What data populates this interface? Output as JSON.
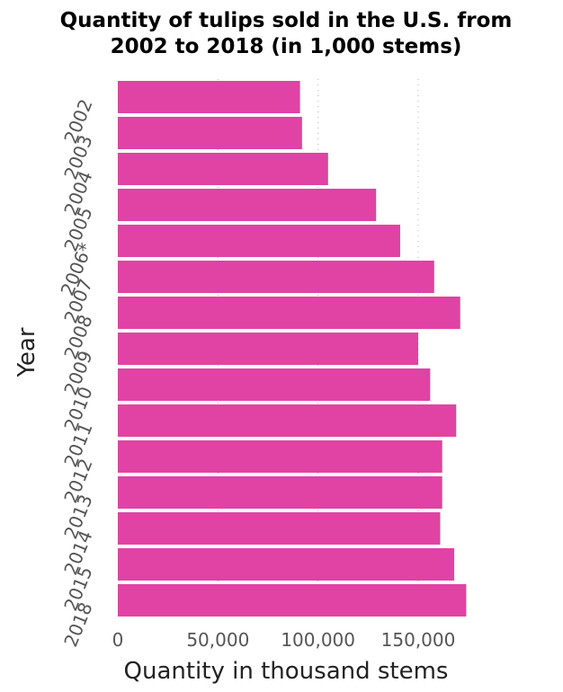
{
  "chart_data": {
    "type": "bar",
    "orientation": "horizontal",
    "title": "Quantity of tulips sold in the U.S. from 2002 to 2018 (in 1,000 stems)",
    "title_lines": [
      "Quantity of tulips sold in the U.S. from",
      "2002 to 2018 (in 1,000 stems)"
    ],
    "xlabel": "Quantity in thousand stems",
    "ylabel": "Year",
    "categories": [
      "2002",
      "2003",
      "2004",
      "2005",
      "2006*",
      "2007",
      "2008",
      "2009",
      "2010",
      "2011",
      "2012",
      "2013",
      "2014",
      "2015",
      "2018"
    ],
    "values": [
      91000,
      92000,
      105000,
      129000,
      141000,
      158000,
      171000,
      150000,
      156000,
      169000,
      162000,
      162000,
      161000,
      168000,
      174000
    ],
    "xlim": [
      0,
      175000
    ],
    "xticks": [
      0,
      50000,
      100000,
      150000
    ],
    "xtick_labels": [
      "0",
      "50,000",
      "100,000",
      "150,000"
    ],
    "grid": "vertical dotted",
    "legend": "none",
    "bar_color": "#e043a3"
  }
}
